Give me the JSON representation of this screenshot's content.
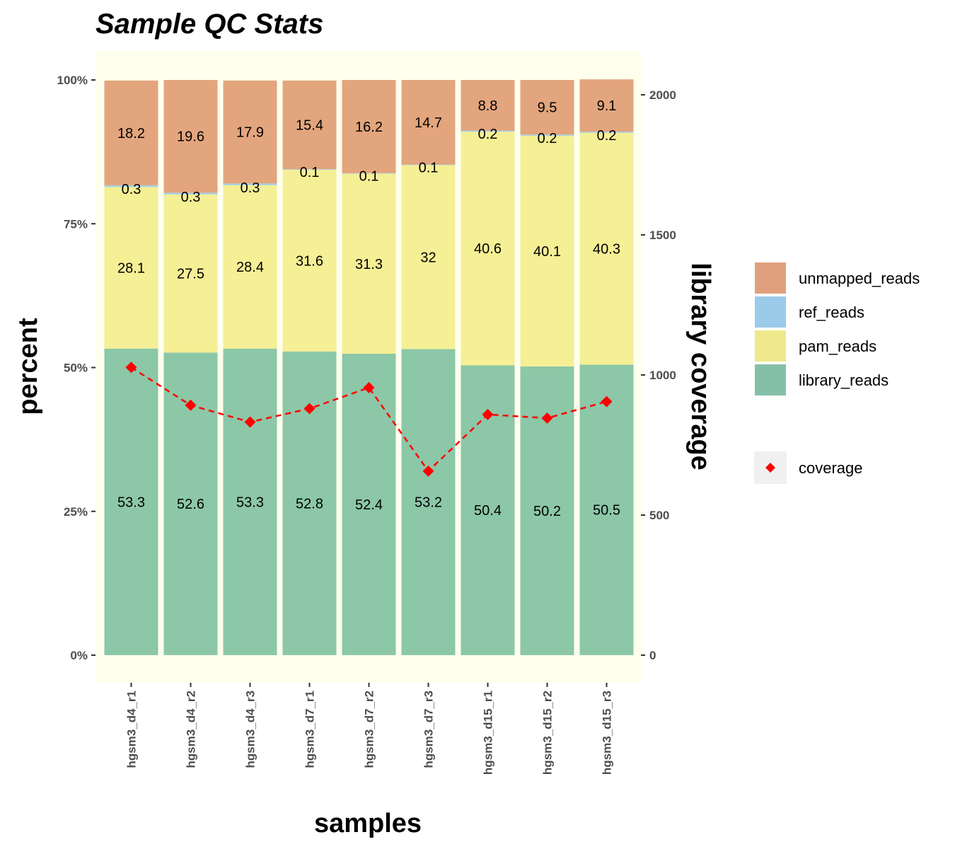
{
  "chart_data": {
    "type": "bar",
    "stacked": true,
    "title": "Sample QC Stats",
    "xlabel": "samples",
    "ylabel": "percent",
    "y2label": "library coverage",
    "categories": [
      "hgsm3_d4_r1",
      "hgsm3_d4_r2",
      "hgsm3_d4_r3",
      "hgsm3_d7_r1",
      "hgsm3_d7_r2",
      "hgsm3_d7_r3",
      "hgsm3_d15_r1",
      "hgsm3_d15_r2",
      "hgsm3_d15_r3"
    ],
    "ylim": [
      0,
      100
    ],
    "y_ticks": [
      "0%",
      "25%",
      "50%",
      "75%",
      "100%"
    ],
    "y_tick_values": [
      0,
      25,
      50,
      75,
      100
    ],
    "y2lim": [
      0,
      2000
    ],
    "y2_ticks": [
      "0",
      "500",
      "1000",
      "1500",
      "2000"
    ],
    "y2_tick_values": [
      0,
      500,
      1000,
      1500,
      2000
    ],
    "series": [
      {
        "name": "library_reads",
        "color": "#8cc7a7",
        "values": [
          53.3,
          52.6,
          53.3,
          52.8,
          52.4,
          53.2,
          50.4,
          50.2,
          50.5
        ],
        "labels": [
          "53.3",
          "52.6",
          "53.3",
          "52.8",
          "52.4",
          "53.2",
          "50.4",
          "50.2",
          "50.5"
        ]
      },
      {
        "name": "pam_reads",
        "color": "#f5ef95",
        "values": [
          28.1,
          27.5,
          28.4,
          31.6,
          31.3,
          32,
          40.6,
          40.1,
          40.3
        ],
        "labels": [
          "28.1",
          "27.5",
          "28.4",
          "31.6",
          "31.3",
          "32",
          "40.6",
          "40.1",
          "40.3"
        ]
      },
      {
        "name": "ref_reads",
        "color": "#a6cee3",
        "values": [
          0.3,
          0.3,
          0.3,
          0.1,
          0.1,
          0.1,
          0.2,
          0.2,
          0.2
        ],
        "labels": [
          "0.3",
          "0.3",
          "0.3",
          "0.1",
          "0.1",
          "0.1",
          "0.2",
          "0.2",
          "0.2"
        ]
      },
      {
        "name": "unmapped_reads",
        "color": "#e3a57d",
        "values": [
          18.2,
          19.6,
          17.9,
          15.4,
          16.2,
          14.7,
          8.8,
          9.5,
          9.1
        ],
        "labels": [
          "18.2",
          "19.6",
          "17.9",
          "15.4",
          "16.2",
          "14.7",
          "8.8",
          "9.5",
          "9.1"
        ]
      }
    ],
    "line_series": {
      "name": "coverage",
      "color": "#ff0000",
      "values": [
        1027,
        892,
        832,
        880,
        955,
        657,
        859,
        846,
        905
      ]
    },
    "legend": {
      "placement": "right",
      "fill_items": [
        {
          "name": "unmapped_reads",
          "color": "#e0a07d"
        },
        {
          "name": "ref_reads",
          "color": "#9ccbea"
        },
        {
          "name": "pam_reads",
          "color": "#efe98c"
        },
        {
          "name": "library_reads",
          "color": "#84c0a8"
        }
      ],
      "line_item": {
        "name": "coverage",
        "color": "#ff0000"
      }
    },
    "panel_background": "#ffffee",
    "grid": false
  }
}
